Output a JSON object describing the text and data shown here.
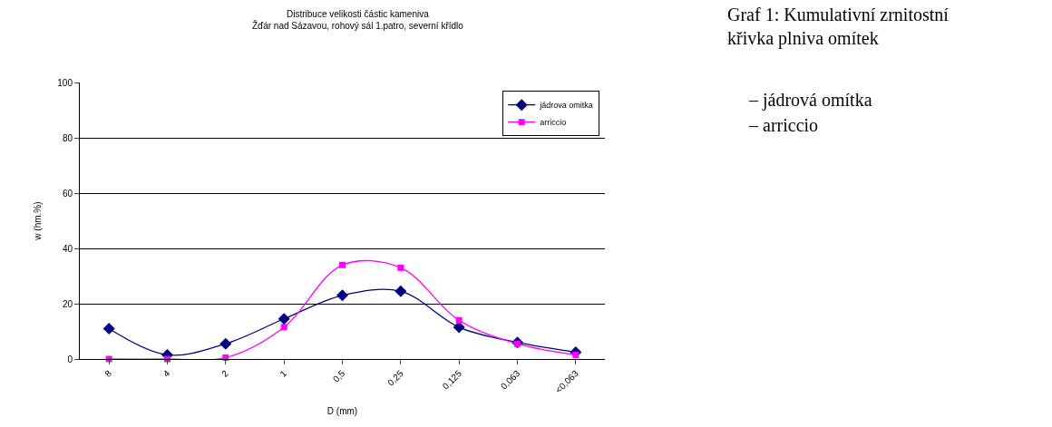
{
  "chart_data": {
    "type": "line",
    "title": "Distribuce velikosti částic kameniva\nŽďár nad Sázavou, rohový sál 1.patro, severní křídlo",
    "xlabel": "D (mm)",
    "ylabel": "w (hm.%)",
    "categories": [
      "8",
      "4",
      "2",
      "1",
      "0,5",
      "0,25",
      "0,125",
      "0,063",
      "<0,063"
    ],
    "series": [
      {
        "name": "jádrova omitka",
        "color": "#000080",
        "marker": "diamond",
        "values": [
          11,
          1.5,
          5.5,
          14.5,
          23,
          24.5,
          11.5,
          6,
          2.5
        ]
      },
      {
        "name": "arriccio",
        "color": "#ff00ff",
        "marker": "square",
        "values": [
          0,
          0,
          0.5,
          11.5,
          34,
          33,
          14,
          5.5,
          1.5
        ]
      }
    ],
    "ylim": [
      0,
      100
    ],
    "yticks": [
      0,
      20,
      40,
      60,
      80,
      100
    ],
    "grid": "y",
    "legend": "top right",
    "annotations": [
      "Graf 1: Kumulativní zrnitostní křivka plniva omítek",
      "– jádrová omítka",
      "– arriccio"
    ]
  }
}
